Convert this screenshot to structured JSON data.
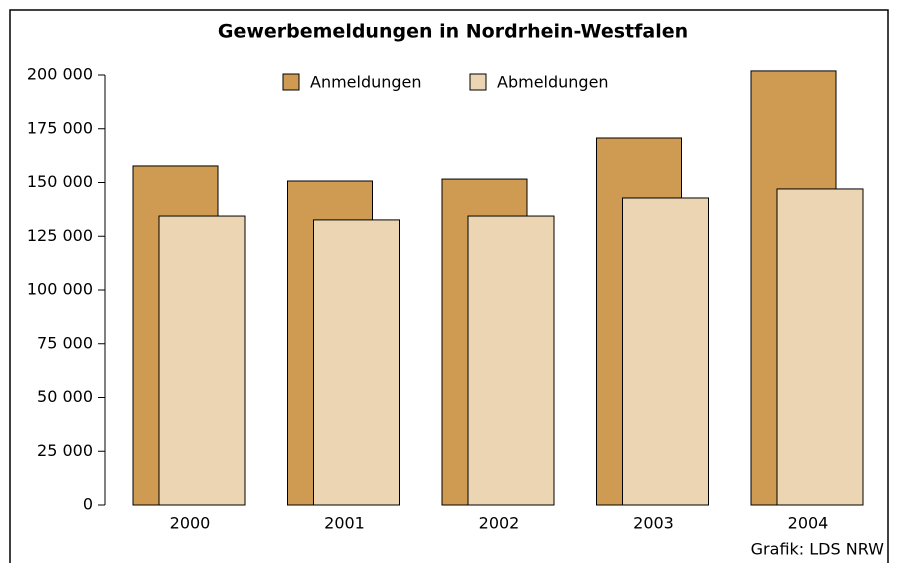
{
  "chart_data": {
    "type": "bar",
    "title": "Gewerbemeldungen in Nordrhein-Westfalen",
    "source": "Grafik: LDS NRW",
    "categories": [
      "2000",
      "2001",
      "2002",
      "2003",
      "2004"
    ],
    "series": [
      {
        "name": "Anmeldungen",
        "color": "#cf9b52",
        "values": [
          157700,
          150700,
          151600,
          170700,
          201900
        ]
      },
      {
        "name": "Abmeldungen",
        "color": "#ebd5b3",
        "values": [
          134400,
          132600,
          134400,
          142800,
          147000
        ]
      }
    ],
    "ylim": [
      0,
      200000
    ],
    "yticks": [
      0,
      {
        "value": 25000,
        "label": "25 000"
      },
      {
        "value": 50000,
        "label": "50 000"
      },
      {
        "value": 75000,
        "label": "75 000"
      },
      {
        "value": 100000,
        "label": "100 000"
      },
      {
        "value": 125000,
        "label": "125 000"
      },
      {
        "value": 150000,
        "label": "150 000"
      },
      {
        "value": 175000,
        "label": "175 000"
      },
      {
        "value": 200000,
        "label": "200 000"
      }
    ],
    "legend": "top"
  }
}
